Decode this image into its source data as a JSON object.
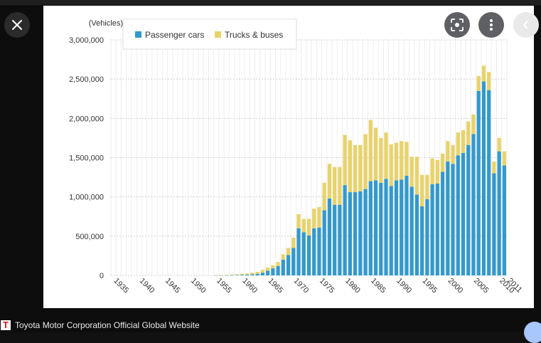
{
  "viewer": {
    "close_icon": "close-icon",
    "lens_icon": "lens-icon",
    "more_icon": "more-vert-icon",
    "next_icon": "chevron-left-icon"
  },
  "footer": {
    "logo_letter": "T",
    "site_name": "Toyota Motor Corporation Official Global Website"
  },
  "colors": {
    "passenger": "#3399cc",
    "trucks": "#e8d36a"
  },
  "chart_data": {
    "type": "bar",
    "stacked": true,
    "ylabel": "(Vehicles)",
    "ylim": [
      0,
      3000000
    ],
    "yticks": [
      "0",
      "500,000",
      "1,000,000",
      "1,500,000",
      "2,000,000",
      "2,500,000",
      "3,000,000"
    ],
    "ytick_values": [
      0,
      500000,
      1000000,
      1500000,
      2000000,
      2500000,
      3000000
    ],
    "xtick_labels": [
      "1935",
      "1940",
      "1945",
      "1950",
      "1955",
      "1960",
      "1965",
      "1970",
      "1975",
      "1980",
      "1985",
      "1990",
      "1995",
      "2000",
      "2005",
      "2010",
      "2011"
    ],
    "legend": {
      "position": "top-left",
      "entries": [
        "Passenger cars",
        "Trucks & buses"
      ]
    },
    "categories": [
      1935,
      1936,
      1937,
      1938,
      1939,
      1940,
      1941,
      1942,
      1943,
      1944,
      1945,
      1946,
      1947,
      1948,
      1949,
      1950,
      1951,
      1952,
      1953,
      1954,
      1955,
      1956,
      1957,
      1958,
      1959,
      1960,
      1961,
      1962,
      1963,
      1964,
      1965,
      1966,
      1967,
      1968,
      1969,
      1970,
      1971,
      1972,
      1973,
      1974,
      1975,
      1976,
      1977,
      1978,
      1979,
      1980,
      1981,
      1982,
      1983,
      1984,
      1985,
      1986,
      1987,
      1988,
      1989,
      1990,
      1991,
      1992,
      1993,
      1994,
      1995,
      1996,
      1997,
      1998,
      1999,
      2000,
      2001,
      2002,
      2003,
      2004,
      2005,
      2006,
      2007,
      2008,
      2009,
      2010,
      2011
    ],
    "series": [
      {
        "name": "Passenger cars",
        "values": [
          0,
          0,
          0,
          0,
          0,
          0,
          0,
          0,
          0,
          0,
          0,
          0,
          0,
          0,
          0,
          0,
          0,
          0,
          0,
          0,
          1000,
          2000,
          3000,
          4000,
          6000,
          8000,
          10000,
          15000,
          20000,
          35000,
          60000,
          90000,
          120000,
          200000,
          260000,
          350000,
          600000,
          550000,
          510000,
          600000,
          610000,
          830000,
          980000,
          900000,
          900000,
          1150000,
          1060000,
          1060000,
          1070000,
          1100000,
          1200000,
          1210000,
          1180000,
          1230000,
          1140000,
          1210000,
          1220000,
          1270000,
          1130000,
          1030000,
          880000,
          970000,
          1160000,
          1170000,
          1320000,
          1450000,
          1420000,
          1530000,
          1560000,
          1660000,
          1800000,
          2350000,
          2470000,
          2360000,
          1300000,
          1580000,
          1400000
        ]
      },
      {
        "name": "Trucks & buses",
        "values": [
          0,
          0,
          0,
          0,
          0,
          0,
          0,
          0,
          0,
          0,
          0,
          0,
          0,
          0,
          0,
          0,
          0,
          0,
          0,
          0,
          2000,
          3000,
          4000,
          5000,
          8000,
          10000,
          15000,
          20000,
          25000,
          35000,
          40000,
          40000,
          50000,
          70000,
          90000,
          130000,
          180000,
          170000,
          210000,
          250000,
          260000,
          350000,
          440000,
          480000,
          480000,
          640000,
          660000,
          600000,
          590000,
          700000,
          780000,
          670000,
          570000,
          590000,
          530000,
          480000,
          490000,
          430000,
          380000,
          480000,
          400000,
          310000,
          330000,
          300000,
          230000,
          260000,
          240000,
          290000,
          290000,
          300000,
          250000,
          190000,
          200000,
          230000,
          150000,
          170000,
          180000
        ]
      }
    ]
  }
}
